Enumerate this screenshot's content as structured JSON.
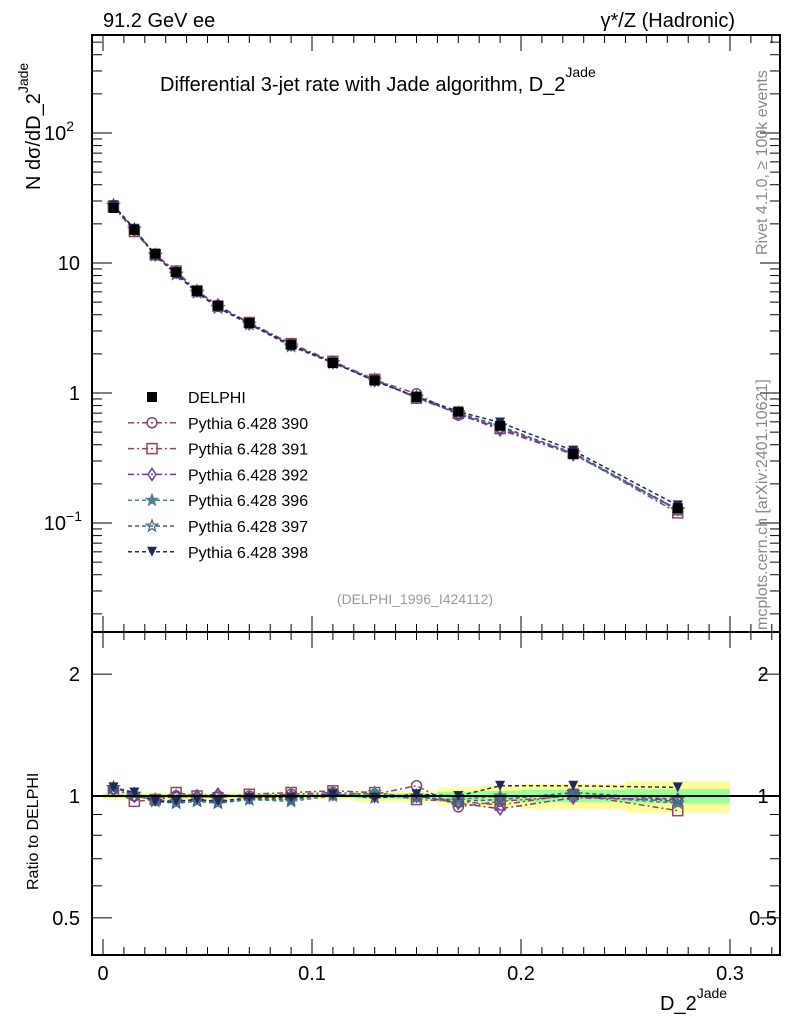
{
  "header": {
    "left": "91.2 GeV ee",
    "right": "γ*/Z (Hadronic)"
  },
  "side_text": {
    "top": "Rivet 4.1.0, ≥ 100k events",
    "bottom": "mcplots.cern.ch [arXiv:2401.10621]"
  },
  "analysis_id": "(DELPHI_1996_I424112)",
  "chart_data": [
    {
      "type": "line",
      "title": "Differential 3-jet rate with Jade algorithm, D_2^Jade",
      "title_main": "Differential 3-jet rate with Jade algorithm, D_2",
      "title_sup": "Jade",
      "ylabel_main": "N  dσ/dD_2",
      "ylabel_sup": "Jade",
      "yscale": "log",
      "ylim": [
        0.0145,
        568
      ],
      "xlim": [
        -0.005,
        0.324
      ],
      "ytick_labels": [
        {
          "value": 100,
          "base": "10",
          "exp": "2"
        },
        {
          "value": 10,
          "base": "10",
          "exp": ""
        },
        {
          "value": 1,
          "base": "1",
          "exp": ""
        },
        {
          "value": 0.1,
          "base": "10",
          "exp": "−1"
        }
      ],
      "x": [
        0.005,
        0.015,
        0.025,
        0.035,
        0.045,
        0.055,
        0.07,
        0.09,
        0.11,
        0.13,
        0.15,
        0.17,
        0.19,
        0.225,
        0.275
      ],
      "data": {
        "name": "DELPHI",
        "values": [
          26.5,
          18.0,
          11.8,
          8.5,
          6.1,
          4.7,
          3.45,
          2.35,
          1.7,
          1.25,
          0.93,
          0.72,
          0.56,
          0.34,
          0.13
        ]
      },
      "legend_position": "center-left"
    },
    {
      "type": "line",
      "ylabel": "Ratio to DELPHI",
      "yscale": "log",
      "ylim": [
        0.405,
        2.54
      ],
      "ytick_labels": [
        {
          "value": 2,
          "label": "2"
        },
        {
          "value": 1,
          "label": "1"
        },
        {
          "value": 0.5,
          "label": "0.5"
        }
      ],
      "xlabel_main": "D_2",
      "xlabel_sup": "Jade",
      "xtick_labels": [
        {
          "value": 0,
          "label": "0"
        },
        {
          "value": 0.1,
          "label": "0.1"
        },
        {
          "value": 0.2,
          "label": "0.2"
        },
        {
          "value": 0.3,
          "label": "0.3"
        }
      ],
      "bin_edges": [
        0,
        0.01,
        0.02,
        0.03,
        0.04,
        0.05,
        0.06,
        0.08,
        0.1,
        0.12,
        0.14,
        0.16,
        0.18,
        0.2,
        0.25,
        0.3
      ],
      "band_outer": [
        0.02,
        0.02,
        0.02,
        0.02,
        0.02,
        0.02,
        0.02,
        0.02,
        0.02,
        0.03,
        0.03,
        0.05,
        0.06,
        0.07,
        0.09
      ],
      "band_inner": [
        0.01,
        0.01,
        0.01,
        0.01,
        0.01,
        0.01,
        0.01,
        0.01,
        0.01,
        0.015,
        0.015,
        0.025,
        0.03,
        0.035,
        0.04
      ],
      "colors": {
        "band_outer": "#ffff99",
        "band_inner": "#99ff99"
      }
    }
  ],
  "series": [
    {
      "name": "Pythia 6.428 390",
      "marker": "circle-open",
      "color": "#7e4c72",
      "dash": "6,3,2,3",
      "ratio": [
        1.04,
        1.0,
        0.98,
        1.0,
        0.99,
        1.0,
        1.0,
        1.01,
        1.02,
        1.01,
        1.06,
        0.94,
        0.97,
        1.0,
        0.97
      ]
    },
    {
      "name": "Pythia 6.428 391",
      "marker": "square-open",
      "color": "#8a4a5e",
      "dash": "6,3,2,3",
      "ratio": [
        1.03,
        0.97,
        0.98,
        1.02,
        1.0,
        0.99,
        1.01,
        1.02,
        1.03,
        1.02,
        0.98,
        0.97,
        0.95,
        1.01,
        0.92
      ]
    },
    {
      "name": "Pythia 6.428 392",
      "marker": "diamond-open",
      "color": "#6a3d9a",
      "dash": "6,3,2,3",
      "ratio": [
        1.04,
        1.0,
        0.98,
        1.0,
        1.0,
        1.01,
        0.99,
        1.0,
        1.01,
        1.0,
        1.0,
        0.96,
        0.93,
        0.99,
        0.98
      ]
    },
    {
      "name": "Pythia 6.428 396",
      "marker": "star-filled",
      "color": "#4f7f8f",
      "dash": "4,3",
      "ratio": [
        1.05,
        1.01,
        0.98,
        0.97,
        0.98,
        0.97,
        0.98,
        0.97,
        1.0,
        1.02,
        0.99,
        0.98,
        1.0,
        1.0,
        0.96
      ]
    },
    {
      "name": "Pythia 6.428 397",
      "marker": "star-open",
      "color": "#3f5f7f",
      "dash": "4,3",
      "ratio": [
        1.05,
        1.01,
        0.97,
        0.96,
        0.97,
        0.96,
        0.98,
        0.98,
        1.01,
        0.99,
        1.0,
        0.97,
        0.98,
        1.02,
        0.98
      ]
    },
    {
      "name": "Pythia 6.428 398",
      "marker": "triangle-down-filled",
      "color": "#1f2a5a",
      "dash": "4,3",
      "ratio": [
        1.05,
        1.02,
        0.97,
        0.97,
        0.98,
        0.97,
        0.99,
        0.99,
        1.01,
        0.99,
        1.01,
        1.0,
        1.06,
        1.06,
        1.05
      ]
    }
  ]
}
